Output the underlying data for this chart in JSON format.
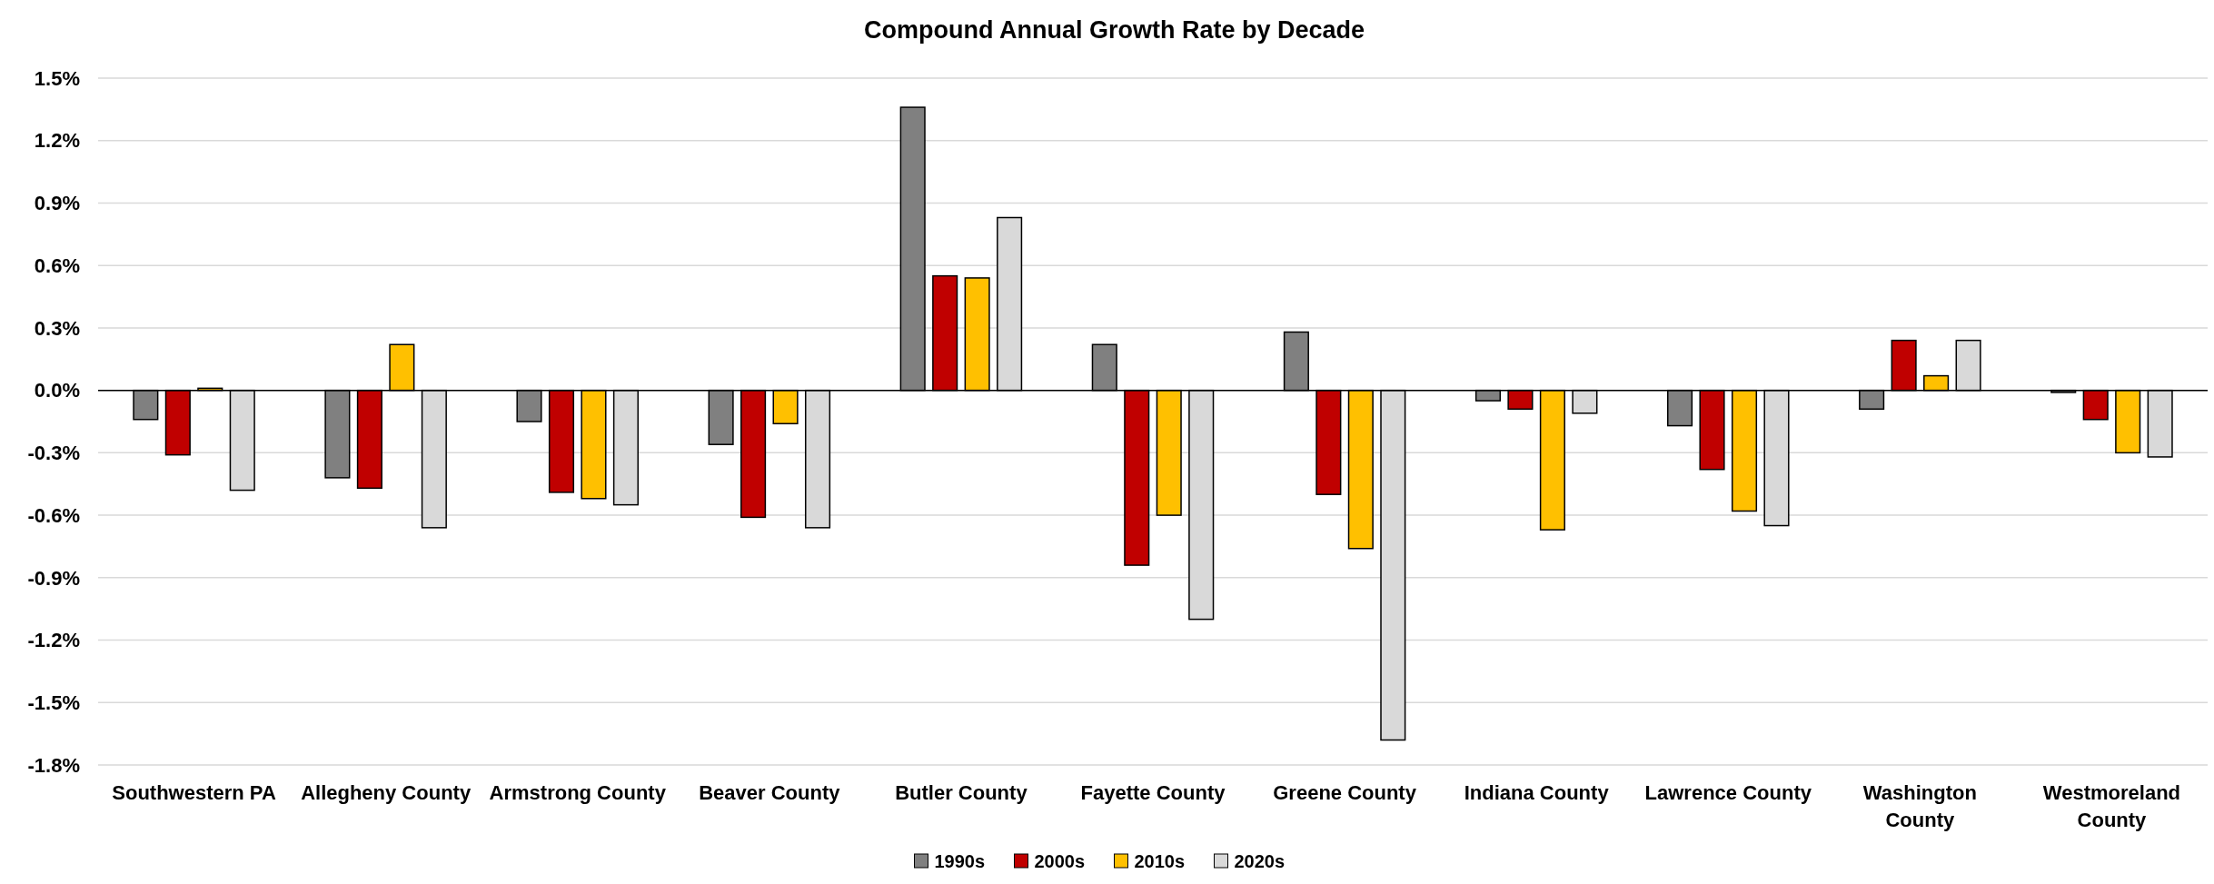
{
  "chart_data": {
    "type": "bar",
    "title": "Compound Annual Growth Rate by Decade",
    "categories": [
      "Southwestern PA",
      "Allegheny County",
      "Armstrong County",
      "Beaver County",
      "Butler County",
      "Fayette County",
      "Greene County",
      "Indiana County",
      "Lawrence County",
      "Washington County",
      "Westmoreland County"
    ],
    "series": [
      {
        "name": "1990s",
        "color": "#808080",
        "values": [
          -0.14,
          -0.42,
          -0.15,
          -0.26,
          1.36,
          0.22,
          0.28,
          -0.05,
          -0.17,
          -0.09,
          -0.01
        ]
      },
      {
        "name": "2000s",
        "color": "#c00000",
        "values": [
          -0.31,
          -0.47,
          -0.49,
          -0.61,
          0.55,
          -0.84,
          -0.5,
          -0.09,
          -0.38,
          0.24,
          -0.14
        ]
      },
      {
        "name": "2010s",
        "color": "#ffc000",
        "values": [
          0.01,
          0.22,
          -0.52,
          -0.16,
          0.54,
          -0.6,
          -0.76,
          -0.67,
          -0.58,
          0.07,
          -0.3
        ]
      },
      {
        "name": "2020s",
        "color": "#d9d9d9",
        "values": [
          -0.48,
          -0.66,
          -0.55,
          -0.66,
          0.83,
          -1.1,
          -1.68,
          -0.11,
          -0.65,
          0.24,
          -0.32
        ]
      }
    ],
    "ylim": [
      -1.8,
      1.5
    ],
    "yticks": [
      {
        "value": -1.8,
        "label": "-1.8%"
      },
      {
        "value": -1.5,
        "label": "-1.5%"
      },
      {
        "value": -1.2,
        "label": "-1.2%"
      },
      {
        "value": -0.9,
        "label": "-0.9%"
      },
      {
        "value": -0.6,
        "label": "-0.6%"
      },
      {
        "value": -0.3,
        "label": "-0.3%"
      },
      {
        "value": 0,
        "label": "0.0%"
      },
      {
        "value": 0.3,
        "label": "0.3%"
      },
      {
        "value": 0.6,
        "label": "0.6%"
      },
      {
        "value": 0.9,
        "label": "0.9%"
      },
      {
        "value": 1.2,
        "label": "1.2%"
      },
      {
        "value": 1.5,
        "label": "1.5%"
      }
    ],
    "grid": "y",
    "legend": "bottom"
  }
}
